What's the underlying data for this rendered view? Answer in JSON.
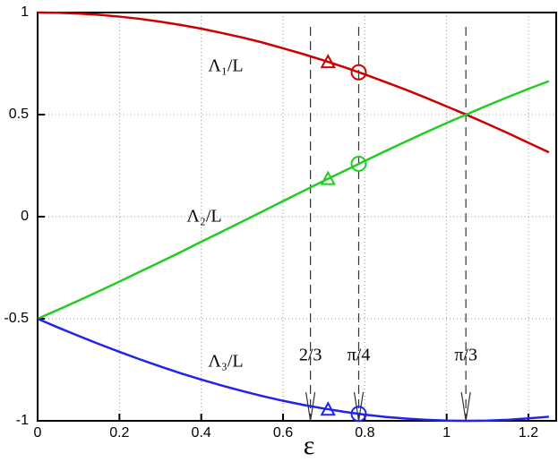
{
  "chart_data": {
    "type": "line",
    "x_label": "ε",
    "x": [
      0,
      0.05,
      0.1,
      0.15,
      0.2,
      0.25,
      0.3,
      0.35,
      0.4,
      0.45,
      0.5,
      0.55,
      0.6,
      0.65,
      0.7,
      0.75,
      0.8,
      0.85,
      0.9,
      0.95,
      1.0,
      1.05,
      1.1,
      1.15,
      1.2,
      1.25
    ],
    "series": [
      {
        "name": "Λ₁/L",
        "color": "#cc0000",
        "values": [
          1,
          0.999,
          0.995,
          0.989,
          0.98,
          0.969,
          0.955,
          0.939,
          0.921,
          0.9,
          0.878,
          0.853,
          0.825,
          0.796,
          0.765,
          0.732,
          0.697,
          0.66,
          0.622,
          0.582,
          0.54,
          0.498,
          0.454,
          0.409,
          0.362,
          0.315
        ]
      },
      {
        "name": "Λ₂/L",
        "color": "#22cc22",
        "values": [
          -0.5,
          -0.456,
          -0.411,
          -0.365,
          -0.318,
          -0.27,
          -0.222,
          -0.173,
          -0.123,
          -0.074,
          -0.024,
          0.026,
          0.076,
          0.126,
          0.176,
          0.224,
          0.273,
          0.321,
          0.368,
          0.414,
          0.459,
          0.502,
          0.545,
          0.586,
          0.626,
          0.664
        ]
      },
      {
        "name": "Λ₃/L",
        "color": "#2222ee",
        "values": [
          -0.5,
          -0.543,
          -0.584,
          -0.624,
          -0.662,
          -0.699,
          -0.734,
          -0.767,
          -0.798,
          -0.827,
          -0.854,
          -0.879,
          -0.902,
          -0.922,
          -0.94,
          -0.956,
          -0.97,
          -0.981,
          -0.989,
          -0.995,
          -0.999,
          -1.0,
          -0.999,
          -0.995,
          -0.988,
          -0.98
        ]
      }
    ],
    "markers": [
      {
        "shape": "triangle",
        "x": 0.71,
        "values": [
          0.758,
          0.186,
          -0.944
        ]
      },
      {
        "shape": "circle",
        "x": 0.785,
        "values": [
          0.707,
          0.259,
          -0.966
        ]
      }
    ],
    "annotations": [
      {
        "x": 0.667,
        "label": "2/3"
      },
      {
        "x": 0.785,
        "label": "π/4"
      },
      {
        "x": 1.047,
        "label": "π/3"
      }
    ],
    "xlim": [
      0,
      1.27
    ],
    "ylim": [
      -1,
      1
    ],
    "xticks": [
      0,
      0.2,
      0.4,
      0.6,
      0.8,
      1,
      1.2
    ],
    "yticks": [
      -1,
      -0.5,
      0,
      0.5,
      1
    ],
    "grid": true
  }
}
